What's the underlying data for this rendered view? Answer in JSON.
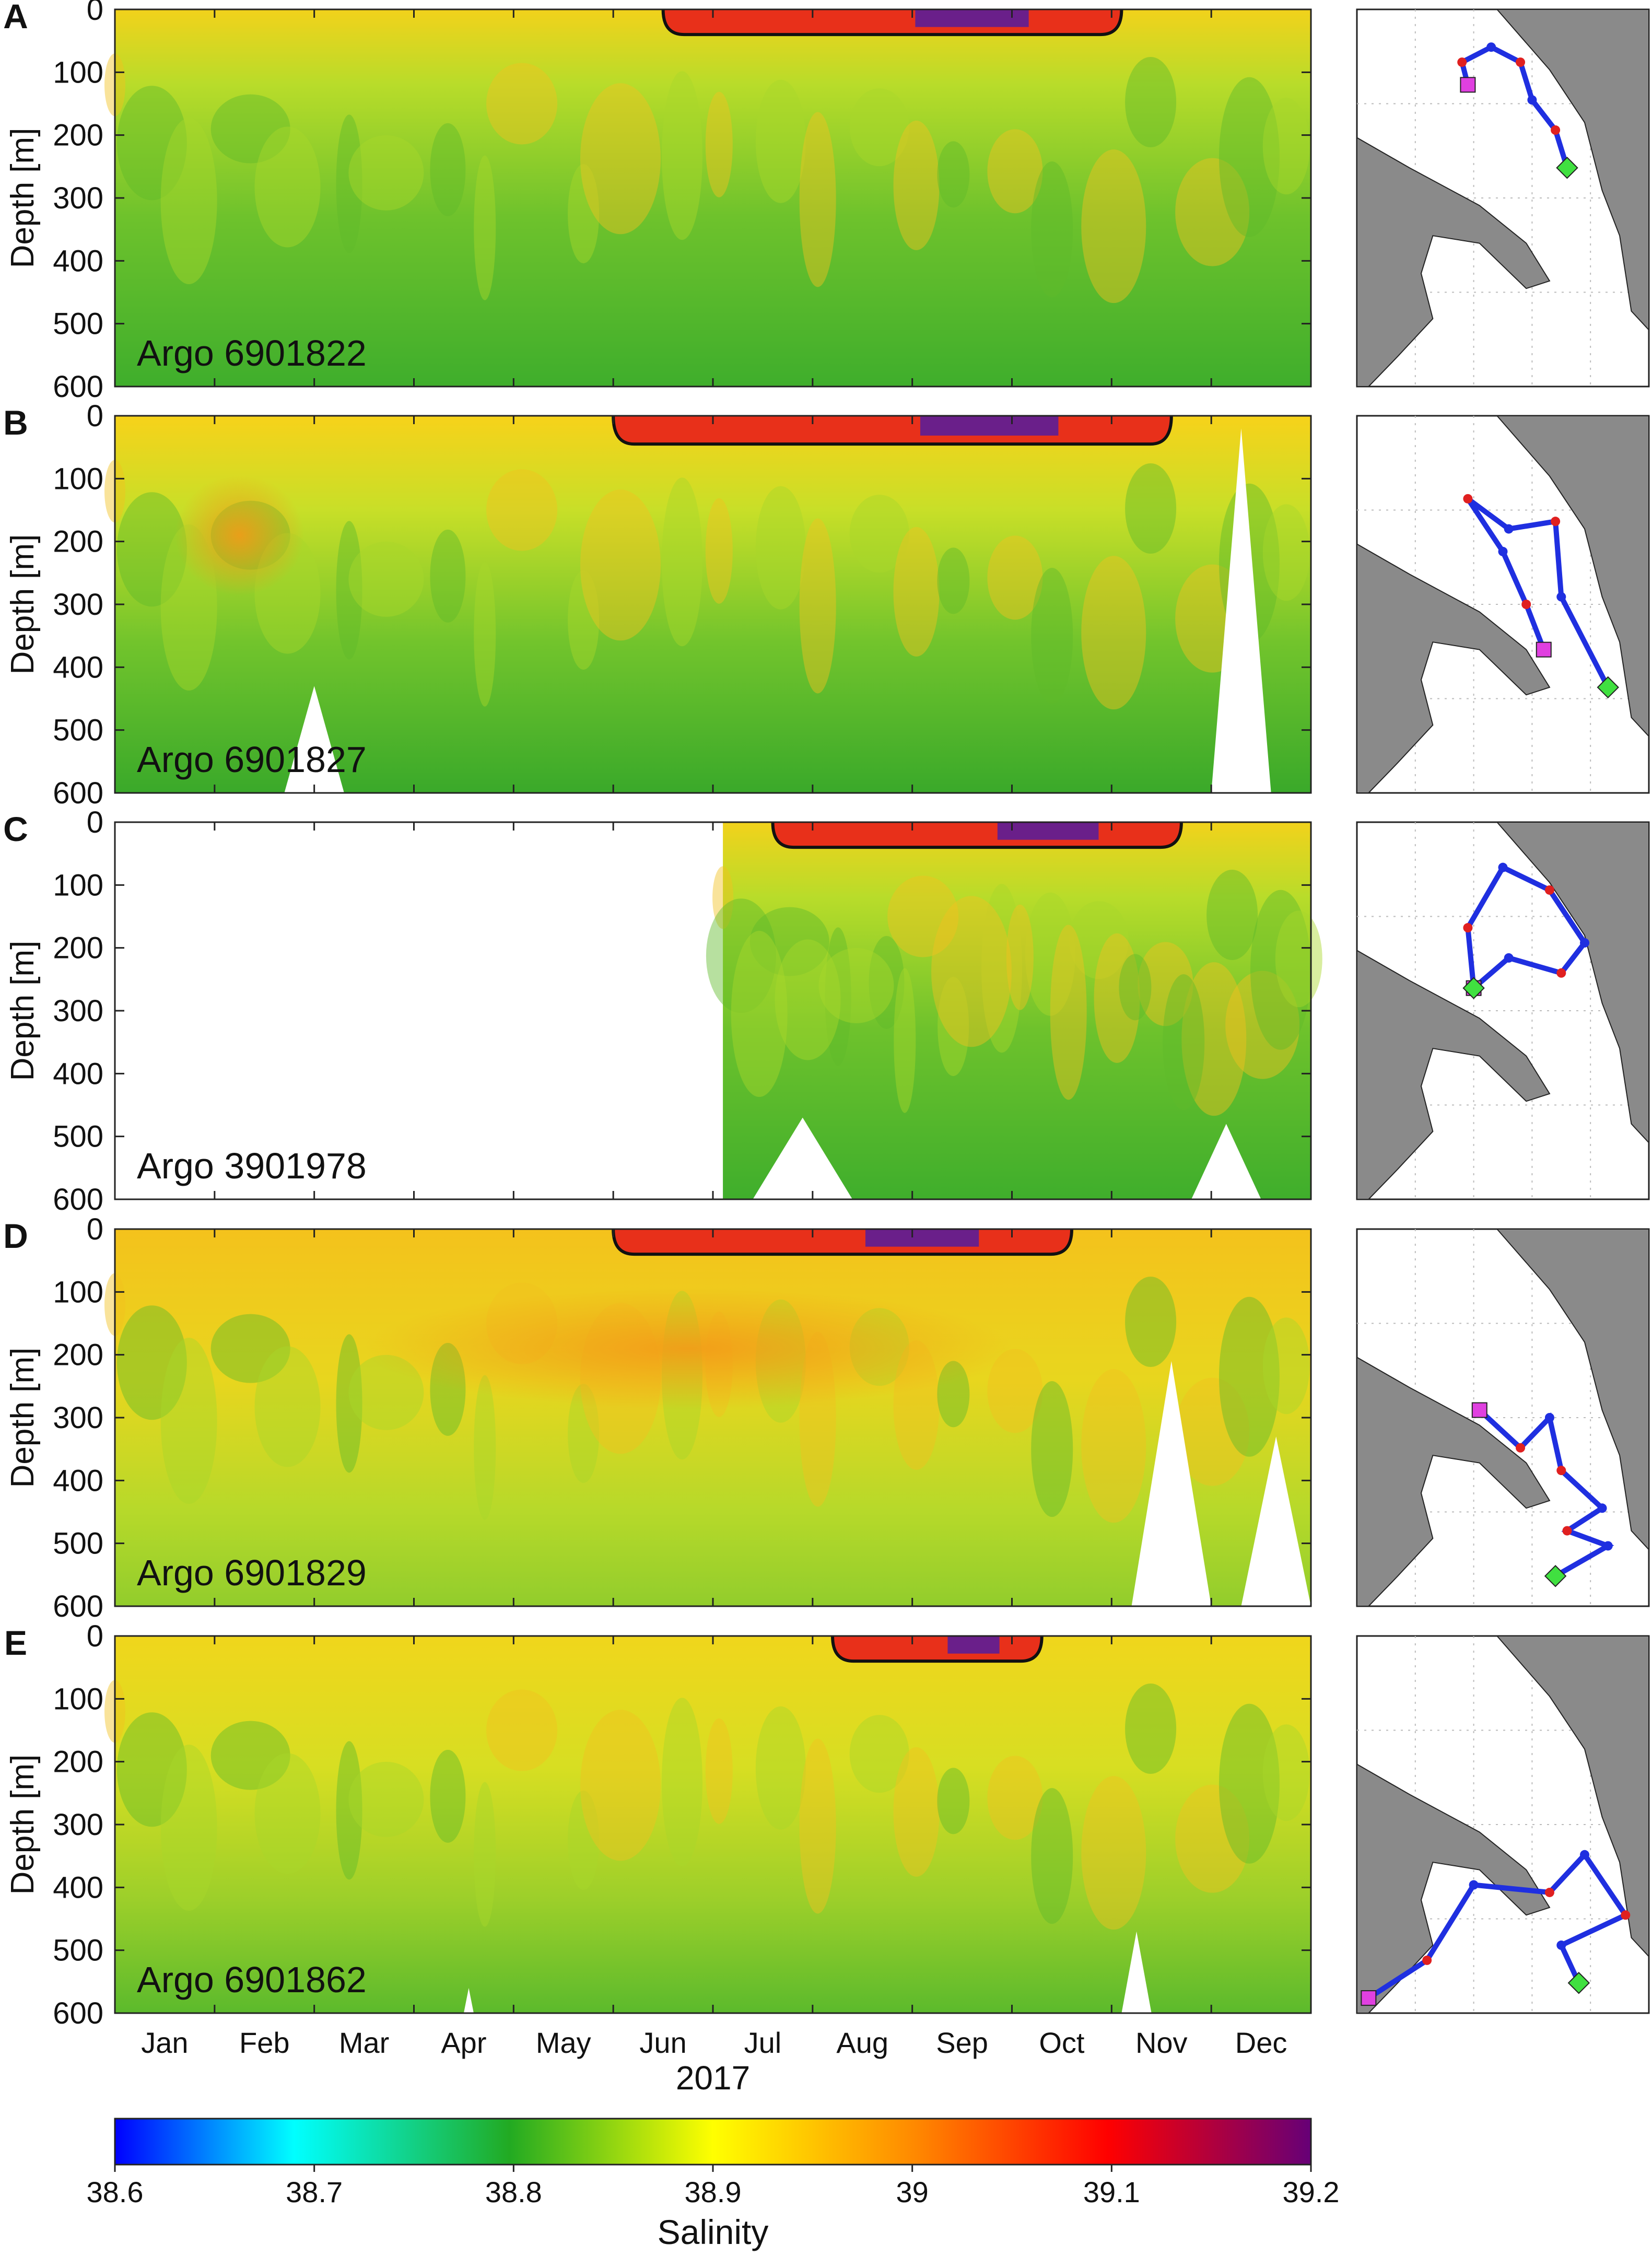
{
  "chart_data": {
    "type": "heatmap",
    "year_label": "2017",
    "ylabel": "Depth [m]",
    "ylim": [
      600,
      0
    ],
    "yticks": [
      "0",
      "100",
      "200",
      "300",
      "400",
      "500",
      "600"
    ],
    "months": [
      "Jan",
      "Feb",
      "Mar",
      "Apr",
      "May",
      "Jun",
      "Jul",
      "Aug",
      "Sep",
      "Oct",
      "Nov",
      "Dec"
    ],
    "colorbar": {
      "label": "Salinity",
      "range": [
        38.6,
        39.2
      ],
      "ticks": [
        "38.6",
        "38.7",
        "38.8",
        "38.9",
        "39",
        "39.1",
        "39.2"
      ],
      "colors": [
        "#0000ff",
        "#00ffff",
        "#22aa22",
        "#ffff00",
        "#ff8800",
        "#ff0000",
        "#660077"
      ]
    },
    "panels": [
      {
        "letter": "A",
        "float": "Argo 6901822",
        "start_month": 0,
        "surface_max": {
          "start_month": 5.5,
          "end_month": 10.1,
          "depth": 40
        },
        "deep": "fresh",
        "mid": "fresh"
      },
      {
        "letter": "B",
        "float": "Argo 6901827",
        "start_month": 0,
        "surface_max": {
          "start_month": 5.0,
          "end_month": 10.6,
          "depth": 45
        },
        "deep": "fresh",
        "mid": "salty-winter"
      },
      {
        "letter": "C",
        "float": "Argo 3901978",
        "start_month": 6.1,
        "surface_max": {
          "start_month": 6.6,
          "end_month": 10.7,
          "depth": 40
        },
        "deep": "fresh",
        "mid": "fresh"
      },
      {
        "letter": "D",
        "float": "Argo 6901829",
        "start_month": 0,
        "surface_max": {
          "start_month": 5.0,
          "end_month": 9.6,
          "depth": 40
        },
        "deep": "mixed",
        "mid": "salty"
      },
      {
        "letter": "E",
        "float": "Argo 6901862",
        "start_month": 0,
        "surface_max": {
          "start_month": 7.2,
          "end_month": 9.3,
          "depth": 40
        },
        "deep": "fresh",
        "mid": "mixed"
      }
    ]
  }
}
